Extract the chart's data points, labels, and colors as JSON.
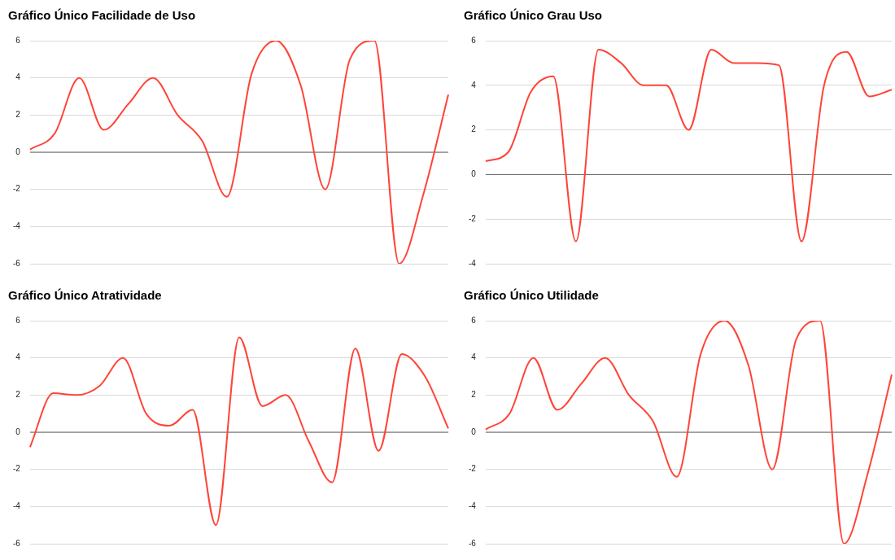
{
  "chart_data": [
    {
      "type": "line",
      "title": "Gráfico Único Facilidade de Uso",
      "categories": [
        null,
        null,
        null,
        null,
        null,
        null,
        null,
        null,
        null,
        null,
        null,
        null,
        null,
        null,
        null,
        null,
        null,
        null
      ],
      "series": [
        {
          "color": "#ff4438",
          "values": [
            0.15,
            1.0,
            4.0,
            1.2,
            2.6,
            4.0,
            2.0,
            0.6,
            -2.4,
            4.2,
            6.0,
            3.6,
            -2.0,
            5.0,
            6.0,
            -6.0,
            -2.2,
            3.1
          ]
        }
      ],
      "ylim": [
        -6,
        6
      ],
      "yticks": [
        -6,
        -4,
        -2,
        0,
        2,
        4,
        6
      ],
      "grid": "y",
      "legend": false,
      "tick_labels": "y",
      "marker": "none",
      "line_style": "solid",
      "ref_lines": [
        {
          "axis": "y",
          "value": 0,
          "color": "#666666"
        }
      ]
    },
    {
      "type": "line",
      "title": "Gráfico Único Grau Uso",
      "categories": [
        null,
        null,
        null,
        null,
        null,
        null,
        null,
        null,
        null,
        null,
        null,
        null,
        null,
        null,
        null,
        null,
        null,
        null,
        null
      ],
      "series": [
        {
          "color": "#ff4438",
          "values": [
            0.6,
            1.0,
            3.7,
            4.4,
            -3.0,
            5.6,
            5.0,
            4.0,
            4.0,
            2.0,
            5.6,
            5.0,
            5.0,
            4.9,
            -3.0,
            4.0,
            5.5,
            3.5,
            3.8
          ]
        }
      ],
      "ylim": [
        -4,
        6
      ],
      "yticks": [
        -4,
        -2,
        0,
        2,
        4,
        6
      ],
      "grid": "y",
      "legend": false,
      "tick_labels": "y",
      "marker": "none",
      "line_style": "solid",
      "ref_lines": [
        {
          "axis": "y",
          "value": 0,
          "color": "#666666"
        }
      ]
    },
    {
      "type": "line",
      "title": "Gráfico Único Atratividade",
      "categories": [
        null,
        null,
        null,
        null,
        null,
        null,
        null,
        null,
        null,
        null,
        null,
        null,
        null,
        null,
        null,
        null,
        null,
        null,
        null
      ],
      "series": [
        {
          "color": "#ff4438",
          "values": [
            -0.8,
            2.1,
            2.0,
            2.5,
            4.0,
            1.0,
            0.35,
            1.2,
            -5.0,
            5.1,
            1.4,
            2.0,
            -0.5,
            -2.7,
            4.5,
            -1.0,
            4.2,
            3.0,
            0.2
          ]
        }
      ],
      "ylim": [
        -6,
        6
      ],
      "yticks": [
        -6,
        -4,
        -2,
        0,
        2,
        4,
        6
      ],
      "grid": "y",
      "legend": false,
      "tick_labels": "y",
      "marker": "none",
      "line_style": "solid",
      "ref_lines": [
        {
          "axis": "y",
          "value": 0,
          "color": "#666666"
        }
      ]
    },
    {
      "type": "line",
      "title": "Gráfico Único Utilidade",
      "categories": [
        null,
        null,
        null,
        null,
        null,
        null,
        null,
        null,
        null,
        null,
        null,
        null,
        null,
        null,
        null,
        null,
        null,
        null
      ],
      "series": [
        {
          "color": "#ff4438",
          "values": [
            0.15,
            1.0,
            4.0,
            1.2,
            2.6,
            4.0,
            2.0,
            0.6,
            -2.4,
            4.2,
            6.0,
            3.6,
            -2.0,
            5.0,
            6.0,
            -6.0,
            -2.2,
            3.1
          ]
        }
      ],
      "ylim": [
        -6,
        6
      ],
      "yticks": [
        -6,
        -4,
        -2,
        0,
        2,
        4,
        6
      ],
      "grid": "y",
      "legend": false,
      "tick_labels": "y",
      "marker": "none",
      "line_style": "solid",
      "ref_lines": [
        {
          "axis": "y",
          "value": 0,
          "color": "#666666"
        }
      ]
    }
  ]
}
